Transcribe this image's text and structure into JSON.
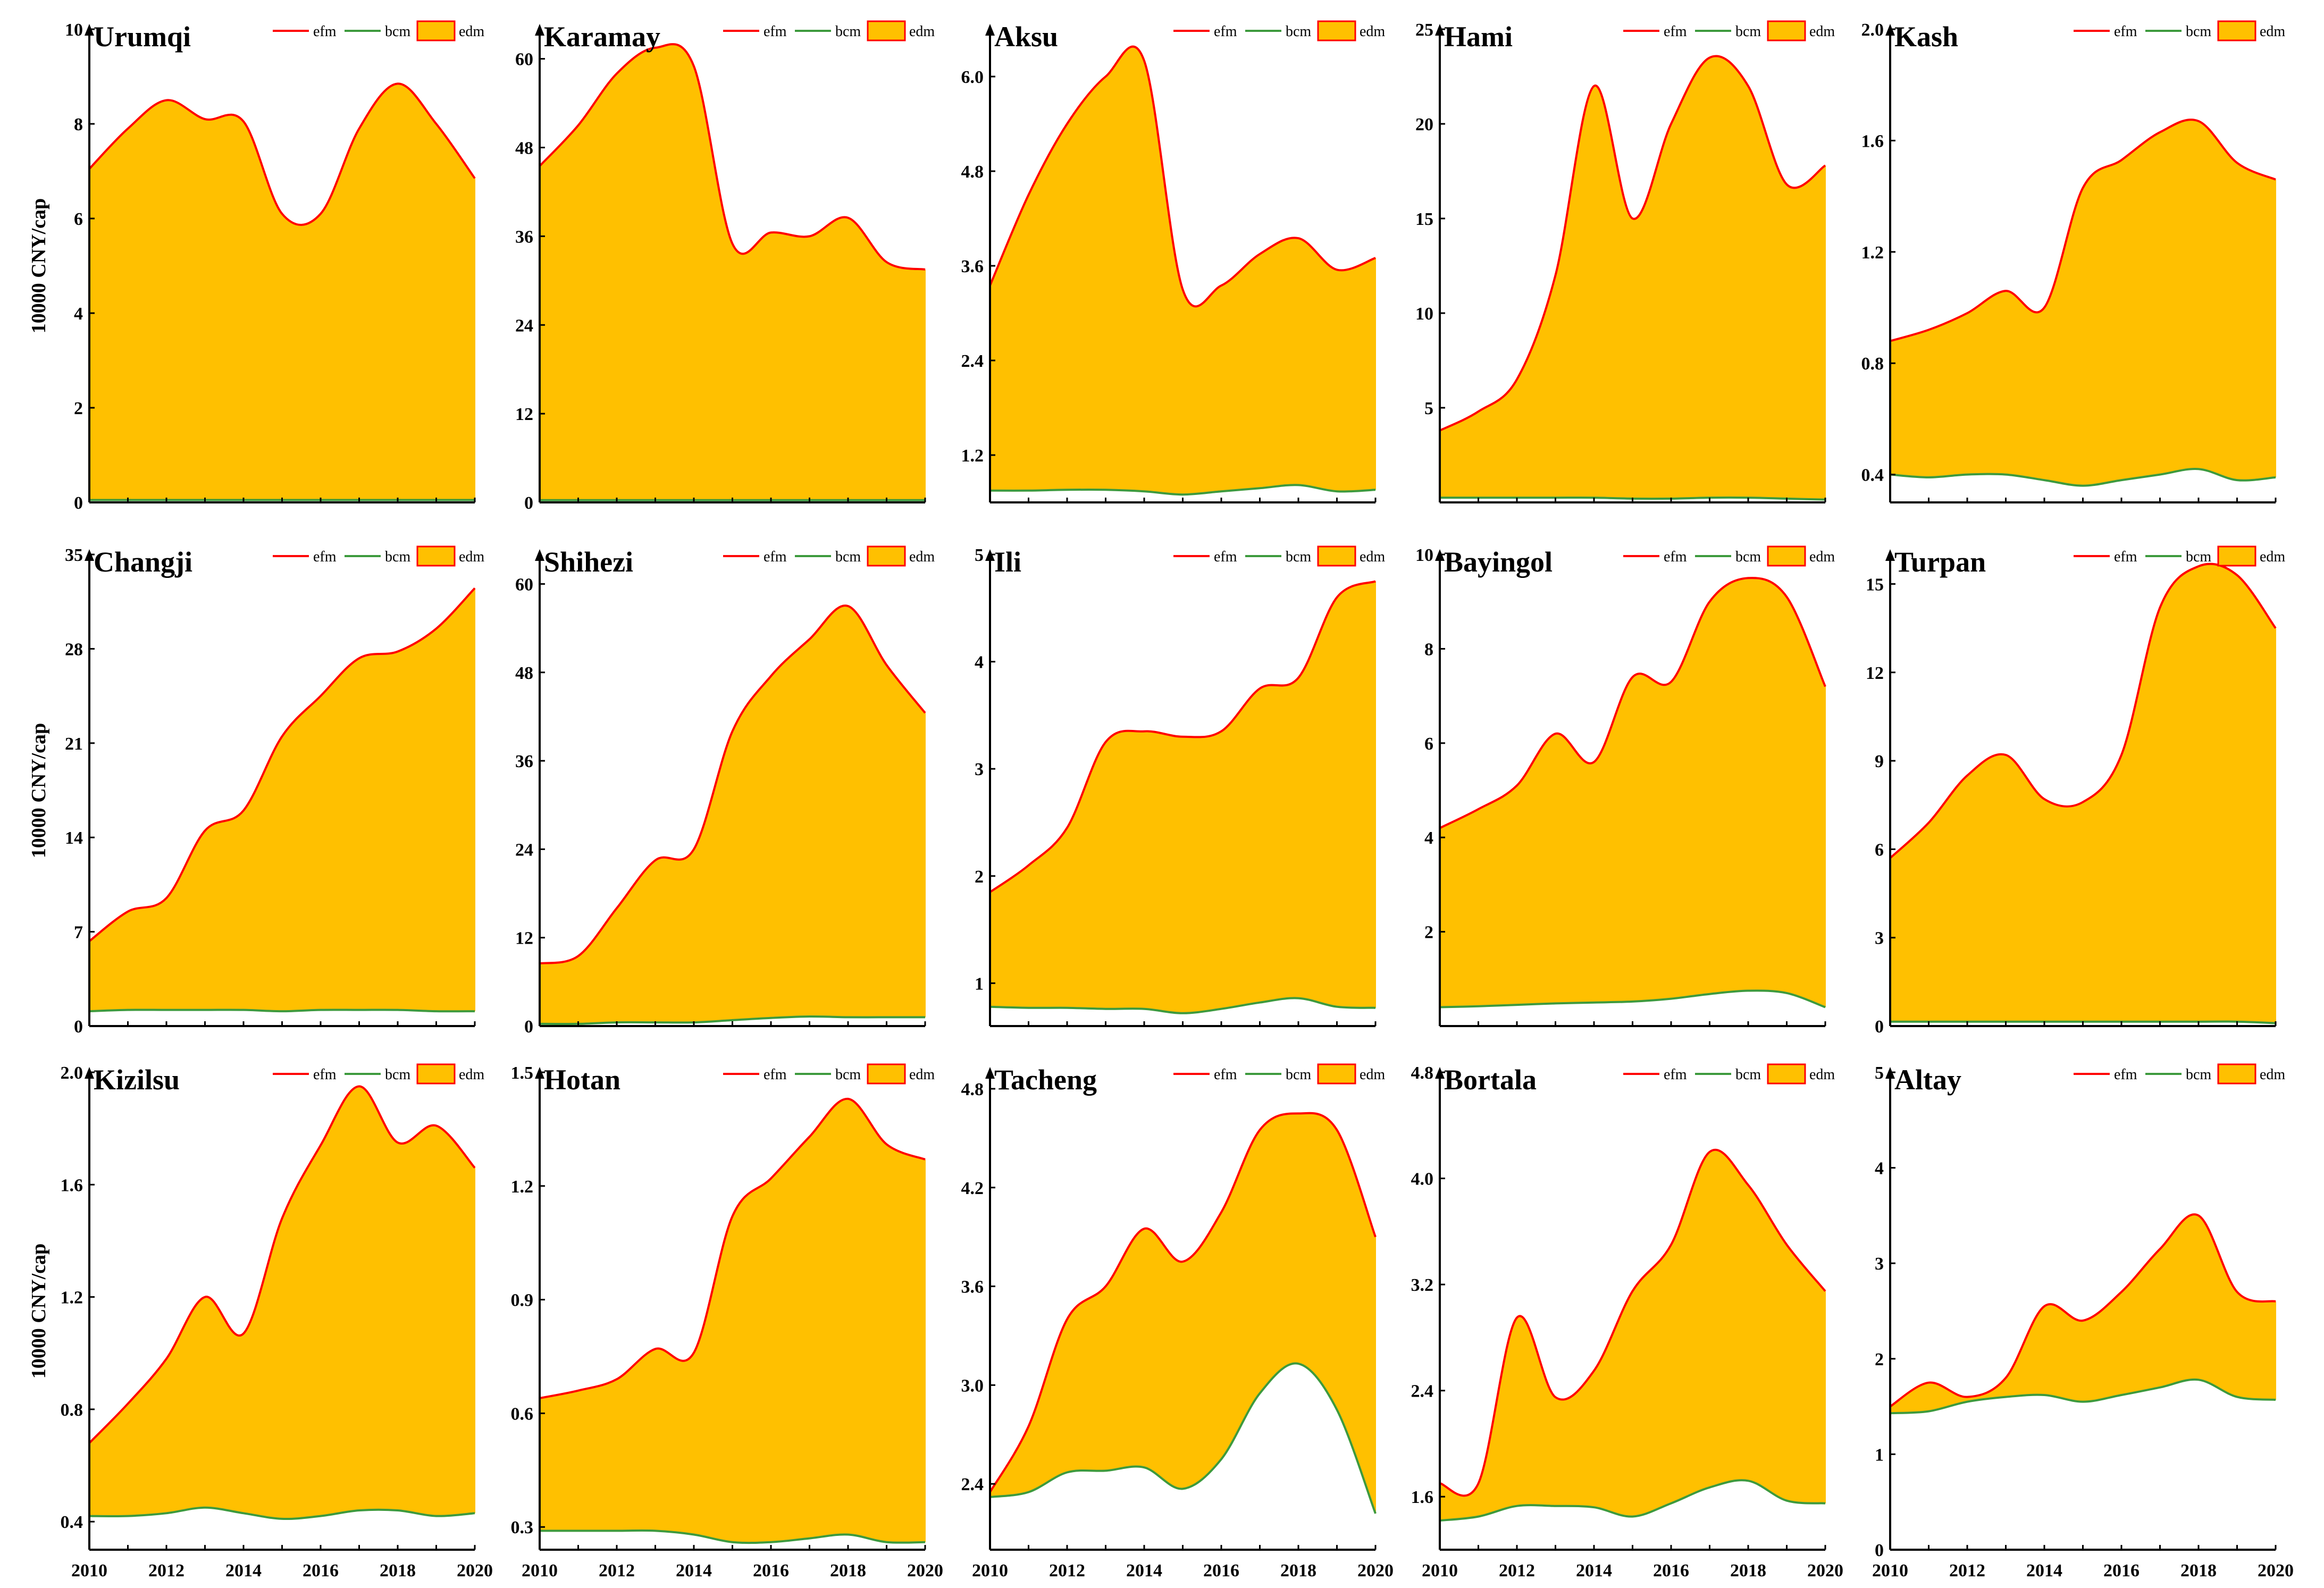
{
  "figure_colors": {
    "efm": "#ff0000",
    "bcm": "#3d9a3d",
    "edm_fill": "#ffc000",
    "axis": "#000000"
  },
  "y_axis_label": "10000 CNY/cap",
  "legend_labels": {
    "efm": "efm",
    "bcm": "bcm",
    "edm": "edm"
  },
  "chart_data": [
    {
      "type": "area",
      "title": "Urumqi",
      "x": [
        2010,
        2011,
        2012,
        2013,
        2014,
        2015,
        2016,
        2017,
        2018,
        2019,
        2020
      ],
      "series": [
        {
          "name": "efm",
          "values": [
            7.05,
            7.9,
            8.5,
            8.1,
            8.05,
            6.1,
            6.1,
            7.9,
            8.85,
            8.0,
            6.85
          ]
        },
        {
          "name": "bcm",
          "values": [
            0.05,
            0.05,
            0.05,
            0.05,
            0.05,
            0.05,
            0.05,
            0.05,
            0.05,
            0.05,
            0.05
          ]
        }
      ],
      "ylim": [
        0,
        10
      ],
      "yticks": [
        0,
        2,
        4,
        6,
        8,
        10
      ],
      "ytick_labels": [
        "0",
        "2",
        "4",
        "6",
        "8",
        "10"
      ],
      "ylabel": "10000 CNY/cap",
      "legend": "top-right"
    },
    {
      "type": "area",
      "title": "Karamay",
      "x": [
        2010,
        2011,
        2012,
        2013,
        2014,
        2015,
        2016,
        2017,
        2018,
        2019,
        2020
      ],
      "series": [
        {
          "name": "efm",
          "values": [
            45.5,
            51,
            58,
            61.5,
            59,
            35,
            36.5,
            36,
            38.5,
            32.5,
            31.5
          ]
        },
        {
          "name": "bcm",
          "values": [
            0.3,
            0.3,
            0.3,
            0.3,
            0.3,
            0.3,
            0.3,
            0.3,
            0.3,
            0.3,
            0.3
          ]
        }
      ],
      "ylim": [
        0,
        64
      ],
      "yticks": [
        0,
        12,
        24,
        36,
        48,
        60
      ],
      "ytick_labels": [
        "0",
        "12",
        "24",
        "36",
        "48",
        "60"
      ],
      "legend": "top-right"
    },
    {
      "type": "area",
      "title": "Aksu",
      "x": [
        2010,
        2011,
        2012,
        2013,
        2014,
        2015,
        2016,
        2017,
        2018,
        2019,
        2020
      ],
      "series": [
        {
          "name": "efm",
          "values": [
            3.35,
            4.5,
            5.4,
            6.0,
            6.2,
            3.3,
            3.35,
            3.75,
            3.95,
            3.55,
            3.7
          ]
        },
        {
          "name": "bcm",
          "values": [
            0.75,
            0.75,
            0.76,
            0.76,
            0.74,
            0.7,
            0.74,
            0.78,
            0.82,
            0.74,
            0.76
          ]
        }
      ],
      "ylim": [
        0.6,
        6.6
      ],
      "yticks": [
        1.2,
        2.4,
        3.6,
        4.8,
        6.0
      ],
      "ytick_labels": [
        "1.2",
        "2.4",
        "3.6",
        "4.8",
        "6.0"
      ],
      "legend": "top-right"
    },
    {
      "type": "area",
      "title": "Hami",
      "x": [
        2010,
        2011,
        2012,
        2013,
        2014,
        2015,
        2016,
        2017,
        2018,
        2019,
        2020
      ],
      "series": [
        {
          "name": "efm",
          "values": [
            3.8,
            4.8,
            6.5,
            12.0,
            22.0,
            15.0,
            20.0,
            23.5,
            22.0,
            16.8,
            17.8
          ]
        },
        {
          "name": "bcm",
          "values": [
            0.25,
            0.25,
            0.25,
            0.25,
            0.25,
            0.2,
            0.2,
            0.25,
            0.25,
            0.2,
            0.15
          ]
        }
      ],
      "ylim": [
        0,
        25
      ],
      "yticks": [
        5,
        10,
        15,
        20,
        25
      ],
      "ytick_labels": [
        "5",
        "10",
        "15",
        "20",
        "25"
      ],
      "legend": "top-right"
    },
    {
      "type": "area",
      "title": "Kash",
      "x": [
        2010,
        2011,
        2012,
        2013,
        2014,
        2015,
        2016,
        2017,
        2018,
        2019,
        2020
      ],
      "series": [
        {
          "name": "efm",
          "values": [
            0.88,
            0.92,
            0.98,
            1.06,
            1.0,
            1.43,
            1.53,
            1.63,
            1.67,
            1.52,
            1.46
          ]
        },
        {
          "name": "bcm",
          "values": [
            0.4,
            0.39,
            0.4,
            0.4,
            0.38,
            0.36,
            0.38,
            0.4,
            0.42,
            0.38,
            0.39
          ]
        }
      ],
      "ylim": [
        0.3,
        2.0
      ],
      "yticks": [
        0.4,
        0.8,
        1.2,
        1.6,
        2.0
      ],
      "ytick_labels": [
        "0.4",
        "0.8",
        "1.2",
        "1.6",
        "2.0"
      ],
      "legend": "top-right"
    },
    {
      "type": "area",
      "title": "Changji",
      "x": [
        2010,
        2011,
        2012,
        2013,
        2014,
        2015,
        2016,
        2017,
        2018,
        2019,
        2020
      ],
      "series": [
        {
          "name": "efm",
          "values": [
            6.3,
            8.5,
            9.5,
            14.5,
            16.0,
            21.5,
            24.5,
            27.3,
            27.8,
            29.5,
            32.5
          ]
        },
        {
          "name": "bcm",
          "values": [
            1.1,
            1.2,
            1.2,
            1.2,
            1.2,
            1.1,
            1.2,
            1.2,
            1.2,
            1.1,
            1.1
          ]
        }
      ],
      "ylim": [
        0,
        35
      ],
      "yticks": [
        0,
        7,
        14,
        21,
        28,
        35
      ],
      "ytick_labels": [
        "0",
        "7",
        "14",
        "21",
        "28",
        "35"
      ],
      "ylabel": "10000 CNY/cap",
      "legend": "top-right"
    },
    {
      "type": "area",
      "title": "Shihezi",
      "x": [
        2010,
        2011,
        2012,
        2013,
        2014,
        2015,
        2016,
        2017,
        2018,
        2019,
        2020
      ],
      "series": [
        {
          "name": "efm",
          "values": [
            8.5,
            9.5,
            16.0,
            22.5,
            24.0,
            40.0,
            47.5,
            52.5,
            57.0,
            49.0,
            42.5
          ]
        },
        {
          "name": "bcm",
          "values": [
            0.3,
            0.3,
            0.5,
            0.5,
            0.5,
            0.8,
            1.1,
            1.3,
            1.2,
            1.2,
            1.2
          ]
        }
      ],
      "ylim": [
        0,
        64
      ],
      "yticks": [
        0,
        12,
        24,
        36,
        48,
        60
      ],
      "ytick_labels": [
        "0",
        "12",
        "24",
        "36",
        "48",
        "60"
      ],
      "legend": "top-right"
    },
    {
      "type": "area",
      "title": "Ili",
      "x": [
        2010,
        2011,
        2012,
        2013,
        2014,
        2015,
        2016,
        2017,
        2018,
        2019,
        2020
      ],
      "series": [
        {
          "name": "efm",
          "values": [
            1.85,
            2.1,
            2.45,
            3.25,
            3.35,
            3.3,
            3.35,
            3.75,
            3.85,
            4.6,
            4.75
          ]
        },
        {
          "name": "bcm",
          "values": [
            0.78,
            0.77,
            0.77,
            0.76,
            0.76,
            0.72,
            0.76,
            0.82,
            0.86,
            0.78,
            0.77
          ]
        }
      ],
      "ylim": [
        0.6,
        5.0
      ],
      "yticks": [
        1,
        2,
        3,
        4,
        5
      ],
      "ytick_labels": [
        "1",
        "2",
        "3",
        "4",
        "5"
      ],
      "legend": "top-right"
    },
    {
      "type": "area",
      "title": "Bayingol",
      "x": [
        2010,
        2011,
        2012,
        2013,
        2014,
        2015,
        2016,
        2017,
        2018,
        2019,
        2020
      ],
      "series": [
        {
          "name": "efm",
          "values": [
            4.2,
            4.6,
            5.1,
            6.2,
            5.6,
            7.4,
            7.3,
            9.0,
            9.5,
            9.1,
            7.2
          ]
        },
        {
          "name": "bcm",
          "values": [
            0.4,
            0.42,
            0.45,
            0.48,
            0.5,
            0.52,
            0.58,
            0.68,
            0.75,
            0.7,
            0.4
          ]
        }
      ],
      "ylim": [
        0,
        10
      ],
      "yticks": [
        2,
        4,
        6,
        8,
        10
      ],
      "ytick_labels": [
        "2",
        "4",
        "6",
        "8",
        "10"
      ],
      "legend": "top-right"
    },
    {
      "type": "area",
      "title": "Turpan",
      "x": [
        2010,
        2011,
        2012,
        2013,
        2014,
        2015,
        2016,
        2017,
        2018,
        2019,
        2020
      ],
      "series": [
        {
          "name": "efm",
          "values": [
            5.7,
            6.9,
            8.5,
            9.2,
            7.7,
            7.6,
            9.2,
            14.2,
            15.6,
            15.3,
            13.5
          ]
        },
        {
          "name": "bcm",
          "values": [
            0.15,
            0.15,
            0.15,
            0.15,
            0.15,
            0.15,
            0.15,
            0.15,
            0.15,
            0.15,
            0.1
          ]
        }
      ],
      "ylim": [
        0,
        16
      ],
      "yticks": [
        0,
        3,
        6,
        9,
        12,
        15
      ],
      "ytick_labels": [
        "0",
        "3",
        "6",
        "9",
        "12",
        "15"
      ],
      "legend": "top-right"
    },
    {
      "type": "area",
      "title": "Kizilsu",
      "x": [
        2010,
        2011,
        2012,
        2013,
        2014,
        2015,
        2016,
        2017,
        2018,
        2019,
        2020
      ],
      "series": [
        {
          "name": "efm",
          "values": [
            0.68,
            0.82,
            0.98,
            1.2,
            1.07,
            1.48,
            1.74,
            1.95,
            1.75,
            1.81,
            1.66
          ]
        },
        {
          "name": "bcm",
          "values": [
            0.42,
            0.42,
            0.43,
            0.45,
            0.43,
            0.41,
            0.42,
            0.44,
            0.44,
            0.42,
            0.43
          ]
        }
      ],
      "ylim": [
        0.3,
        2.0
      ],
      "yticks": [
        0.4,
        0.8,
        1.2,
        1.6,
        2.0
      ],
      "ytick_labels": [
        "0.4",
        "0.8",
        "1.2",
        "1.6",
        "2.0"
      ],
      "ylabel": "10000 CNY/cap",
      "legend": "top-right"
    },
    {
      "type": "area",
      "title": "Hotan",
      "x": [
        2010,
        2011,
        2012,
        2013,
        2014,
        2015,
        2016,
        2017,
        2018,
        2019,
        2020
      ],
      "series": [
        {
          "name": "efm",
          "values": [
            0.64,
            0.66,
            0.69,
            0.77,
            0.76,
            1.12,
            1.22,
            1.33,
            1.43,
            1.31,
            1.27
          ]
        },
        {
          "name": "bcm",
          "values": [
            0.29,
            0.29,
            0.29,
            0.29,
            0.28,
            0.26,
            0.26,
            0.27,
            0.28,
            0.26,
            0.26
          ]
        }
      ],
      "ylim": [
        0.24,
        1.5
      ],
      "yticks": [
        0.3,
        0.6,
        0.9,
        1.2,
        1.5
      ],
      "ytick_labels": [
        "0.3",
        "0.6",
        "0.9",
        "1.2",
        "1.5"
      ],
      "legend": "top-right"
    },
    {
      "type": "area",
      "title": "Tacheng",
      "x": [
        2010,
        2011,
        2012,
        2013,
        2014,
        2015,
        2016,
        2017,
        2018,
        2019,
        2020
      ],
      "series": [
        {
          "name": "efm",
          "values": [
            2.35,
            2.75,
            3.4,
            3.6,
            3.95,
            3.75,
            4.05,
            4.55,
            4.65,
            4.55,
            3.9
          ]
        },
        {
          "name": "bcm",
          "values": [
            2.32,
            2.35,
            2.47,
            2.48,
            2.5,
            2.37,
            2.55,
            2.95,
            3.13,
            2.85,
            2.22
          ]
        }
      ],
      "ylim": [
        2.0,
        4.9
      ],
      "yticks": [
        2.4,
        3.0,
        3.6,
        4.2,
        4.8
      ],
      "ytick_labels": [
        "2.4",
        "3.0",
        "3.6",
        "4.2",
        "4.8"
      ],
      "legend": "top-right"
    },
    {
      "type": "area",
      "title": "Bortala",
      "x": [
        2010,
        2011,
        2012,
        2013,
        2014,
        2015,
        2016,
        2017,
        2018,
        2019,
        2020
      ],
      "series": [
        {
          "name": "efm",
          "values": [
            1.7,
            1.7,
            2.95,
            2.35,
            2.55,
            3.15,
            3.5,
            4.2,
            3.95,
            3.5,
            3.15
          ]
        },
        {
          "name": "bcm",
          "values": [
            1.42,
            1.45,
            1.53,
            1.53,
            1.52,
            1.45,
            1.55,
            1.67,
            1.72,
            1.57,
            1.55
          ]
        }
      ],
      "ylim": [
        1.2,
        4.8
      ],
      "yticks": [
        1.6,
        2.4,
        3.2,
        4.0,
        4.8
      ],
      "ytick_labels": [
        "1.6",
        "2.4",
        "3.2",
        "4.0",
        "4.8"
      ],
      "legend": "top-right"
    },
    {
      "type": "area",
      "title": "Altay",
      "x": [
        2010,
        2011,
        2012,
        2013,
        2014,
        2015,
        2016,
        2017,
        2018,
        2019,
        2020
      ],
      "series": [
        {
          "name": "efm",
          "values": [
            1.5,
            1.75,
            1.6,
            1.8,
            2.55,
            2.4,
            2.7,
            3.15,
            3.5,
            2.7,
            2.6
          ]
        },
        {
          "name": "bcm",
          "values": [
            1.43,
            1.45,
            1.55,
            1.6,
            1.62,
            1.55,
            1.62,
            1.7,
            1.78,
            1.6,
            1.57
          ]
        }
      ],
      "ylim": [
        0,
        5
      ],
      "yticks": [
        0,
        1,
        2,
        3,
        4,
        5
      ],
      "ytick_labels": [
        "0",
        "1",
        "2",
        "3",
        "4",
        "5"
      ],
      "legend": "top-right"
    }
  ],
  "x_tick_labels": [
    "2010",
    "2012",
    "2014",
    "2016",
    "2018",
    "2020"
  ]
}
